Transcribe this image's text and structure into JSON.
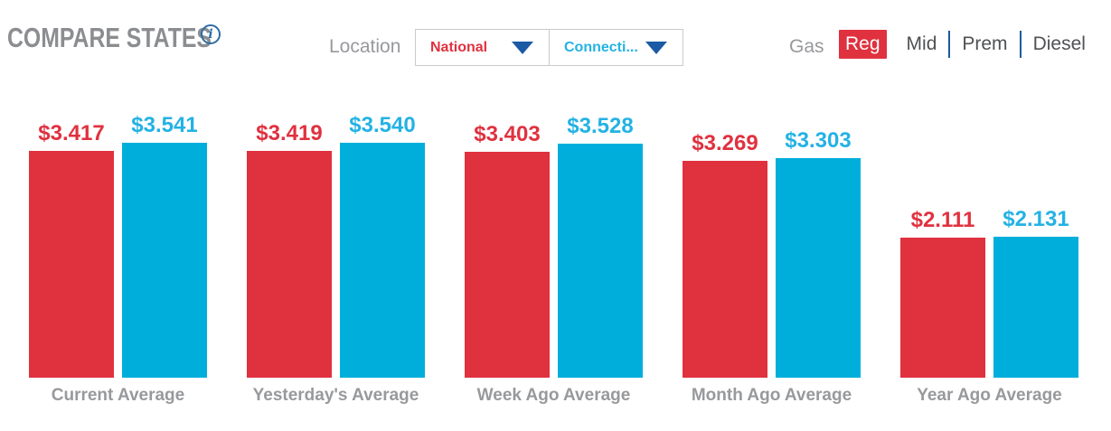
{
  "header": {
    "title": "COMPARE STATES",
    "info_icon": {
      "glyph": "i"
    },
    "location": {
      "label": "Location",
      "dropdowns": [
        {
          "value": "National"
        },
        {
          "value": "Connecti..."
        }
      ]
    },
    "gas": {
      "label": "Gas",
      "options": [
        {
          "label": "Reg",
          "selected": true,
          "divider_before": false
        },
        {
          "label": "Mid",
          "selected": false,
          "divider_before": false
        },
        {
          "label": "Prem",
          "selected": false,
          "divider_before": true
        },
        {
          "label": "Diesel",
          "selected": false,
          "divider_before": true
        }
      ]
    }
  },
  "colors": {
    "national_red": "#e0313f",
    "state_cyan": "#00aedb",
    "cyan_text": "#24b2e4",
    "arrow_blue": "#1b5aa5",
    "divider_blue": "#1b5aa5",
    "title_gray": "#8b8d90",
    "label_gray": "#97999c",
    "option_gray": "#4f5153",
    "info_blue": "#2d6da6",
    "border_gray": "#c9cacc"
  },
  "chart_data": {
    "type": "bar",
    "title": "Compare States gas price averages",
    "categories": [
      "Current Average",
      "Yesterday's Average",
      "Week Ago Average",
      "Month Ago Average",
      "Year Ago Average"
    ],
    "series": [
      {
        "name": "National",
        "bar_color": "#e0313f",
        "label_color": "#e0313f",
        "values": [
          3.417,
          3.419,
          3.403,
          3.269,
          2.111
        ],
        "value_labels": [
          "$3.417",
          "$3.419",
          "$3.403",
          "$3.269",
          "$2.111"
        ]
      },
      {
        "name": "Connecticut",
        "bar_color": "#00aedb",
        "label_color": "#24b2e4",
        "values": [
          3.541,
          3.54,
          3.528,
          3.303,
          2.131
        ],
        "value_labels": [
          "$3.541",
          "$3.540",
          "$3.528",
          "$3.303",
          "$2.131"
        ]
      }
    ],
    "value_prefix": "$",
    "ylim": [
      0,
      3.541
    ],
    "grid": false,
    "legend": "none"
  }
}
